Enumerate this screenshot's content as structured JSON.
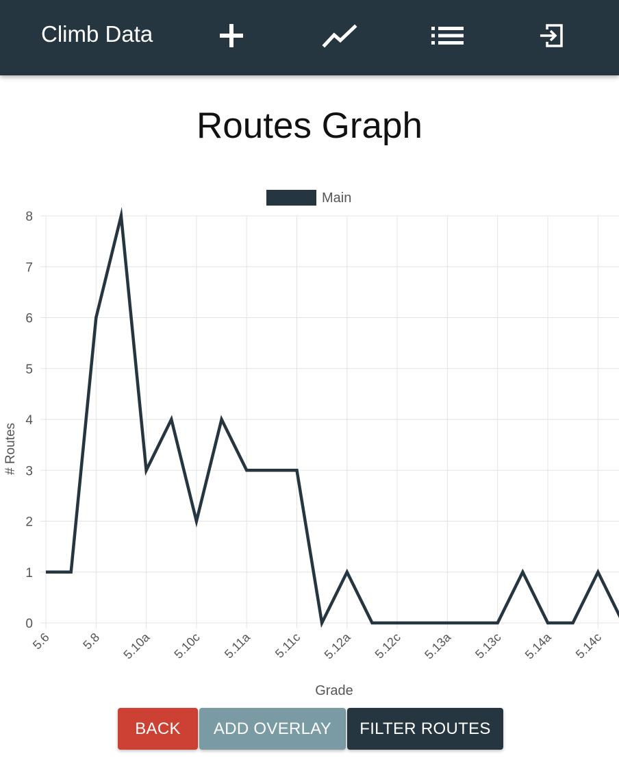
{
  "navbar": {
    "brand": "Climb Data",
    "icons": [
      "plus-icon",
      "line-chart-icon",
      "list-icon",
      "logout-icon"
    ]
  },
  "page": {
    "title": "Routes Graph"
  },
  "colors": {
    "navbar": "#263640",
    "series": "#263640",
    "back": "#cc4134",
    "overlay": "#7a9ba4",
    "filter": "#263640"
  },
  "chart_data": {
    "type": "line",
    "title": "",
    "xlabel": "Grade",
    "ylabel": "# Routes",
    "ylim": [
      0,
      8
    ],
    "yticks": [
      0,
      1,
      2,
      3,
      4,
      5,
      6,
      7,
      8
    ],
    "grid": true,
    "legend": "top-center",
    "categories": [
      "5.6",
      "5.7",
      "5.8",
      "5.9",
      "5.10a",
      "5.10b",
      "5.10c",
      "5.10d",
      "5.11a",
      "5.11b",
      "5.11c",
      "5.11d",
      "5.12a",
      "5.12b",
      "5.12c",
      "5.12d",
      "5.13a",
      "5.13b",
      "5.13c",
      "5.13d",
      "5.14a",
      "5.14b",
      "5.14c",
      "5.14d"
    ],
    "tick_labels": [
      "5.6",
      "5.8",
      "5.10a",
      "5.10c",
      "5.11a",
      "5.11c",
      "5.12a",
      "5.12c",
      "5.13a",
      "5.13c",
      "5.14a",
      "5.14c"
    ],
    "series": [
      {
        "name": "Main",
        "values": [
          1,
          1,
          6,
          8,
          3,
          4,
          2,
          4,
          3,
          3,
          3,
          0,
          1,
          0,
          0,
          0,
          0,
          0,
          0,
          1,
          0,
          0,
          1,
          0
        ]
      }
    ]
  },
  "buttons": {
    "back": "BACK",
    "add_overlay": "ADD OVERLAY",
    "filter_routes": "FILTER ROUTES"
  }
}
